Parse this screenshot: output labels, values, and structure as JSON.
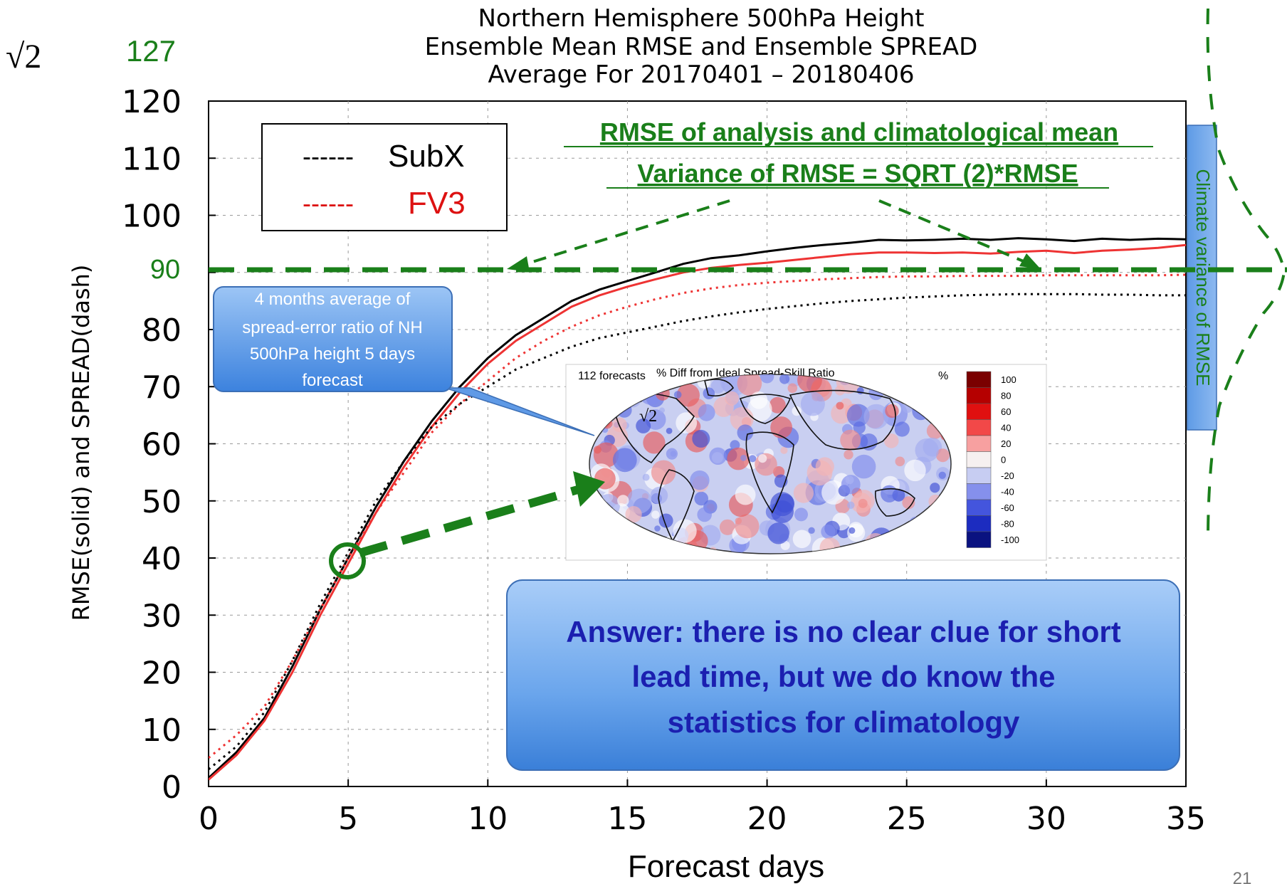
{
  "chart_data": {
    "type": "line",
    "title": [
      "Northern Hemisphere 500hPa Height",
      "Ensemble Mean RMSE and Ensemble SPREAD",
      "Average For 20170401 – 20180406"
    ],
    "xlabel": "Forecast days",
    "ylabel": "RMSE(solid) and SPREAD(dash)",
    "xlim": [
      0,
      35
    ],
    "ylim": [
      0,
      120
    ],
    "xticks": [
      0,
      5,
      10,
      15,
      20,
      25,
      30,
      35
    ],
    "yticks": [
      0,
      10,
      20,
      30,
      40,
      50,
      60,
      70,
      80,
      90,
      100,
      110,
      120
    ],
    "grid": true,
    "legend": "top-left",
    "series": [
      {
        "name": "SubX",
        "metric": "RMSE",
        "style": "solid",
        "color": "#000000",
        "points": [
          [
            0,
            1.5
          ],
          [
            1,
            6
          ],
          [
            2,
            12
          ],
          [
            3,
            21
          ],
          [
            4,
            31
          ],
          [
            5,
            40
          ],
          [
            6,
            49
          ],
          [
            7,
            57
          ],
          [
            8,
            64
          ],
          [
            9,
            70
          ],
          [
            10,
            75
          ],
          [
            11,
            79
          ],
          [
            12,
            82
          ],
          [
            13,
            85
          ],
          [
            14,
            87
          ],
          [
            15,
            88.5
          ],
          [
            16,
            90
          ],
          [
            17,
            91.5
          ],
          [
            18,
            92.5
          ],
          [
            19,
            93
          ],
          [
            20,
            93.7
          ],
          [
            21,
            94.3
          ],
          [
            22,
            94.8
          ],
          [
            23,
            95.2
          ],
          [
            24,
            95.7
          ],
          [
            25,
            95.6
          ],
          [
            26,
            95.7
          ],
          [
            27,
            95.9
          ],
          [
            28,
            95.7
          ],
          [
            29,
            96
          ],
          [
            30,
            95.8
          ],
          [
            31,
            95.5
          ],
          [
            32,
            95.9
          ],
          [
            33,
            95.7
          ],
          [
            34,
            95.9
          ],
          [
            35,
            95.8
          ]
        ]
      },
      {
        "name": "FV3",
        "metric": "RMSE",
        "style": "solid",
        "color": "#ee3333",
        "points": [
          [
            0,
            1.2
          ],
          [
            1,
            5.5
          ],
          [
            2,
            11.5
          ],
          [
            3,
            20
          ],
          [
            4,
            30
          ],
          [
            5,
            39
          ],
          [
            6,
            48
          ],
          [
            7,
            56
          ],
          [
            8,
            63
          ],
          [
            9,
            69
          ],
          [
            10,
            74
          ],
          [
            11,
            78
          ],
          [
            12,
            81
          ],
          [
            13,
            84
          ],
          [
            14,
            86
          ],
          [
            15,
            87.5
          ],
          [
            16,
            88.8
          ],
          [
            17,
            90
          ],
          [
            18,
            90.8
          ],
          [
            19,
            91.3
          ],
          [
            20,
            91.7
          ],
          [
            21,
            92.2
          ],
          [
            22,
            92.7
          ],
          [
            23,
            93.2
          ],
          [
            24,
            93.5
          ],
          [
            25,
            93.5
          ],
          [
            26,
            93.4
          ],
          [
            27,
            93.5
          ],
          [
            28,
            93.3
          ],
          [
            29,
            93.6
          ],
          [
            30,
            93.8
          ],
          [
            31,
            93.4
          ],
          [
            32,
            93.8
          ],
          [
            33,
            94
          ],
          [
            34,
            94.3
          ],
          [
            35,
            94.8
          ]
        ]
      },
      {
        "name": "SubX",
        "metric": "SPREAD",
        "style": "dash",
        "color": "#000000",
        "points": [
          [
            0,
            3
          ],
          [
            1,
            7
          ],
          [
            2,
            13
          ],
          [
            3,
            22
          ],
          [
            4,
            32
          ],
          [
            5,
            41
          ],
          [
            6,
            50
          ],
          [
            7,
            57
          ],
          [
            8,
            63
          ],
          [
            9,
            67
          ],
          [
            10,
            70
          ],
          [
            11,
            73
          ],
          [
            12,
            75
          ],
          [
            13,
            77
          ],
          [
            14,
            78.5
          ],
          [
            15,
            79.5
          ],
          [
            16,
            80.5
          ],
          [
            17,
            81.5
          ],
          [
            18,
            82.3
          ],
          [
            19,
            83
          ],
          [
            20,
            83.6
          ],
          [
            21,
            84.1
          ],
          [
            22,
            84.6
          ],
          [
            23,
            85
          ],
          [
            24,
            85.3
          ],
          [
            25,
            85.6
          ],
          [
            26,
            85.8
          ],
          [
            27,
            86
          ],
          [
            28,
            86.1
          ],
          [
            29,
            86.2
          ],
          [
            30,
            86.2
          ],
          [
            31,
            86.2
          ],
          [
            32,
            86.1
          ],
          [
            33,
            86.1
          ],
          [
            34,
            86
          ],
          [
            35,
            86
          ]
        ]
      },
      {
        "name": "FV3",
        "metric": "SPREAD",
        "style": "dash",
        "color": "#ee3333",
        "points": [
          [
            0,
            5
          ],
          [
            1,
            9
          ],
          [
            2,
            14
          ],
          [
            3,
            22
          ],
          [
            4,
            31
          ],
          [
            5,
            40
          ],
          [
            6,
            48
          ],
          [
            7,
            55
          ],
          [
            8,
            62
          ],
          [
            9,
            67
          ],
          [
            10,
            71
          ],
          [
            11,
            75
          ],
          [
            12,
            78
          ],
          [
            13,
            80.5
          ],
          [
            14,
            82.5
          ],
          [
            15,
            84
          ],
          [
            16,
            85.3
          ],
          [
            17,
            86.4
          ],
          [
            18,
            87.2
          ],
          [
            19,
            87.8
          ],
          [
            20,
            88.2
          ],
          [
            21,
            88.5
          ],
          [
            22,
            88.8
          ],
          [
            23,
            89
          ],
          [
            24,
            89.2
          ],
          [
            25,
            89.3
          ],
          [
            26,
            89.3
          ],
          [
            27,
            89.4
          ],
          [
            28,
            89.4
          ],
          [
            29,
            89.4
          ],
          [
            30,
            89.5
          ],
          [
            31,
            89.5
          ],
          [
            32,
            89.5
          ],
          [
            33,
            89.5
          ],
          [
            34,
            89.5
          ],
          [
            35,
            89.6
          ]
        ]
      }
    ],
    "reference_line": {
      "y": 90,
      "label": "90",
      "color": "#1a7f1a"
    }
  },
  "legend": {
    "items": [
      {
        "dash_text": "------",
        "label": "SubX",
        "color": "#000000"
      },
      {
        "dash_text": "------",
        "label": "FV3",
        "color": "#dd1111"
      }
    ]
  },
  "annotations": {
    "sqrt2_symbol": "√2",
    "value_127": "127",
    "green_note_line1": "RMSE of analysis and climatological mean",
    "green_note_line2": "Variance of RMSE = SQRT (2)*RMSE",
    "climate_box": "Climate variance of RMSE",
    "callout_text": [
      "4 months  average of",
      "spread-error ratio of NH",
      "500hPa height 5 days",
      "forecast"
    ],
    "answer_lines": [
      "Answer: there is no clear clue for short",
      "lead time, but we do know the",
      "statistics for climatology"
    ],
    "page_number": "21",
    "green_color": "#1a7f1a"
  },
  "inset_map": {
    "left_title": "112 forecasts",
    "title": "% Diff from Ideal Spread-Skill Ratio",
    "unit": "%",
    "sqrt2": "√2",
    "colorbar": [
      {
        "value": "100",
        "color": "#7a0000"
      },
      {
        "value": "80",
        "color": "#b50000"
      },
      {
        "value": "60",
        "color": "#e01010"
      },
      {
        "value": "40",
        "color": "#f24848"
      },
      {
        "value": "20",
        "color": "#f7a0a0"
      },
      {
        "value": "0",
        "color": "#f6f0f0"
      },
      {
        "value": "-20",
        "color": "#c7cdf2"
      },
      {
        "value": "-40",
        "color": "#8590ec"
      },
      {
        "value": "-60",
        "color": "#4455dd"
      },
      {
        "value": "-80",
        "color": "#1c2cc0"
      },
      {
        "value": "-100",
        "color": "#0a1280"
      }
    ]
  }
}
